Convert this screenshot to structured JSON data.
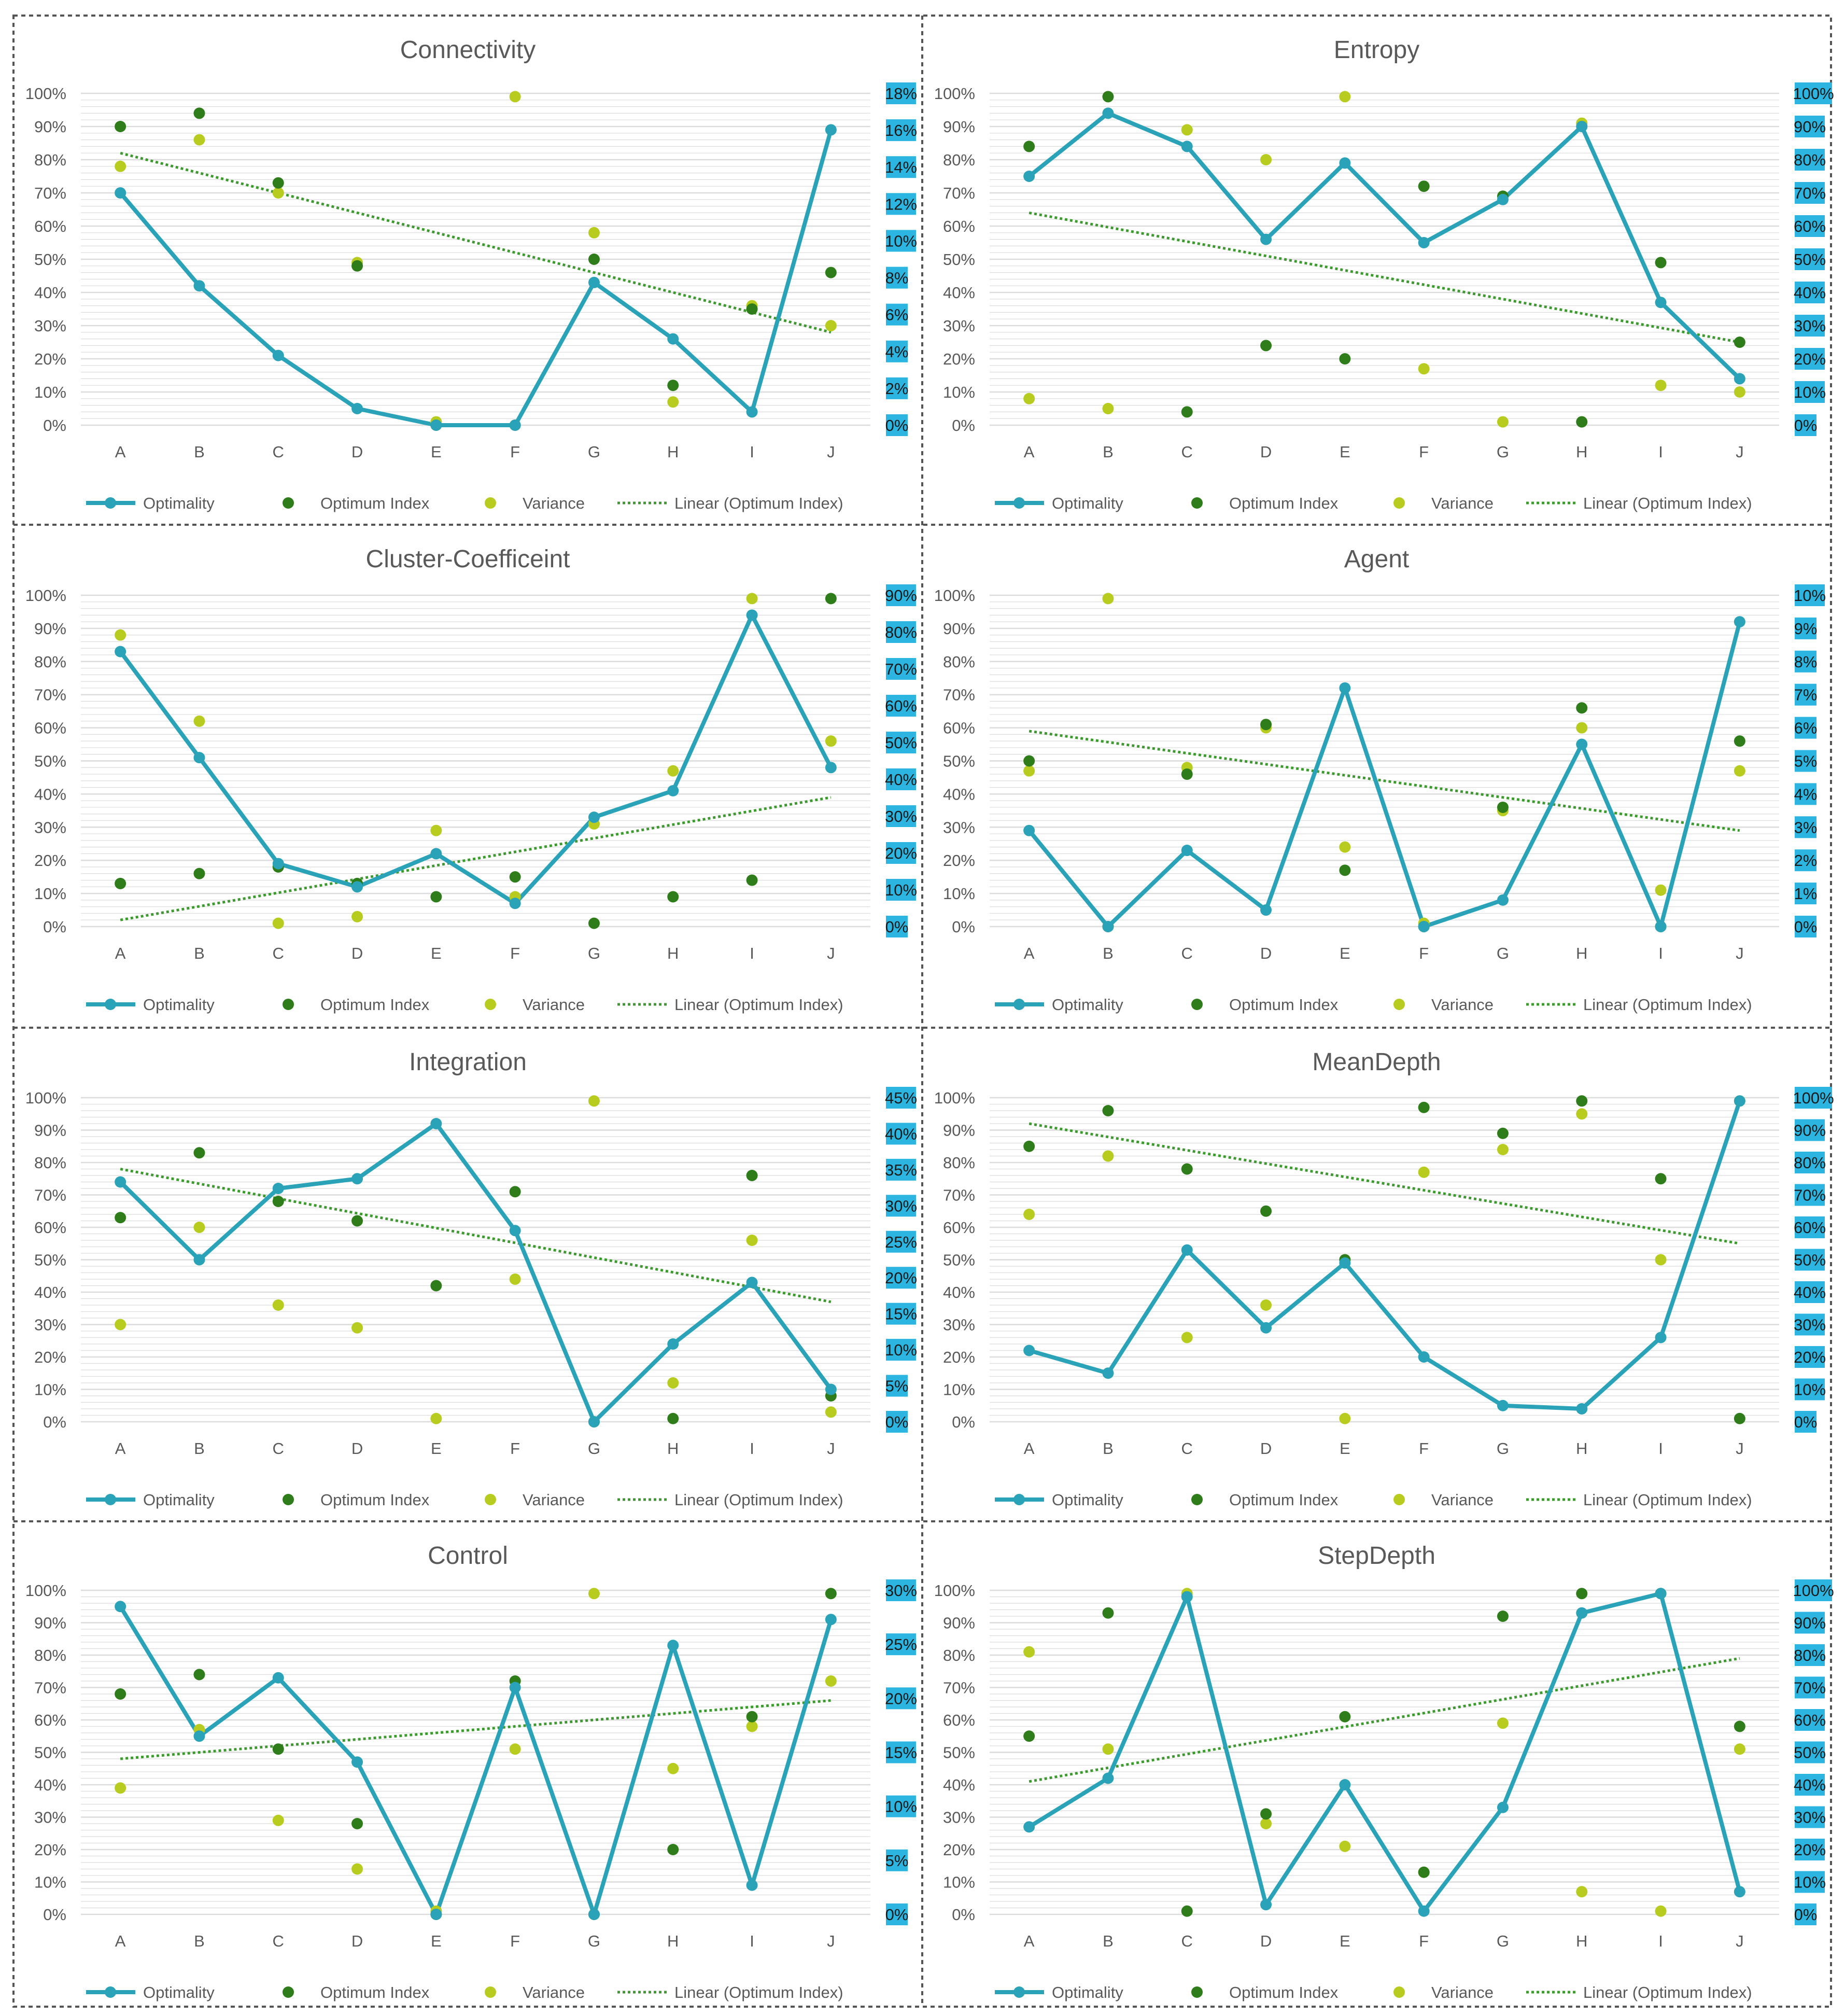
{
  "legend": {
    "optimality": "Optimality",
    "optimum_index": "Optimum Index",
    "variance": "Variance",
    "linear": "Linear (Optimum Index)"
  },
  "colors": {
    "optimality": "#2aa3b8",
    "optimum_index": "#2f7d1a",
    "variance": "#b7cc1f",
    "trend": "#3d9a2f",
    "right_axis_bg": "#2bb5e0",
    "gridline": "#dcdcdc",
    "frame": "#555555",
    "text": "#595959"
  },
  "left_axis_labels": [
    "0%",
    "10%",
    "20%",
    "30%",
    "40%",
    "50%",
    "60%",
    "70%",
    "80%",
    "90%",
    "100%"
  ],
  "chart_data": [
    {
      "type": "line+scatter",
      "title": "Connectivity",
      "categories": [
        "A",
        "B",
        "C",
        "D",
        "E",
        "F",
        "G",
        "H",
        "I",
        "J"
      ],
      "ylim": [
        0,
        100
      ],
      "right_axis_labels": [
        "0%",
        "2%",
        "4%",
        "6%",
        "8%",
        "10%",
        "12%",
        "14%",
        "16%",
        "18%"
      ],
      "series": [
        {
          "name": "Optimality",
          "values": [
            70,
            42,
            21,
            5,
            0,
            0,
            43,
            26,
            4,
            89
          ]
        },
        {
          "name": "Optimum Index",
          "values": [
            90,
            94,
            73,
            48,
            0,
            0,
            50,
            12,
            35,
            46
          ]
        },
        {
          "name": "Variance",
          "values": [
            78,
            86,
            70,
            49,
            1,
            99,
            58,
            7,
            36,
            30
          ]
        }
      ],
      "trend": {
        "name": "Linear (Optimum Index)",
        "start": 82,
        "end": 28
      }
    },
    {
      "type": "line+scatter",
      "title": "Entropy",
      "categories": [
        "A",
        "B",
        "C",
        "D",
        "E",
        "F",
        "G",
        "H",
        "I",
        "J"
      ],
      "ylim": [
        0,
        100
      ],
      "right_axis_labels": [
        "0%",
        "10%",
        "20%",
        "30%",
        "40%",
        "50%",
        "60%",
        "70%",
        "80%",
        "90%",
        "100%"
      ],
      "series": [
        {
          "name": "Optimality",
          "values": [
            75,
            94,
            84,
            56,
            79,
            55,
            68,
            90,
            37,
            14
          ]
        },
        {
          "name": "Optimum Index",
          "values": [
            84,
            99,
            4,
            24,
            20,
            72,
            69,
            1,
            49,
            25
          ]
        },
        {
          "name": "Variance",
          "values": [
            8,
            5,
            89,
            80,
            99,
            17,
            1,
            91,
            12,
            10
          ]
        }
      ],
      "trend": {
        "name": "Linear (Optimum Index)",
        "start": 64,
        "end": 25
      }
    },
    {
      "type": "line+scatter",
      "title": "Cluster-Coefficeint",
      "categories": [
        "A",
        "B",
        "C",
        "D",
        "E",
        "F",
        "G",
        "H",
        "I",
        "J"
      ],
      "ylim": [
        0,
        100
      ],
      "right_axis_labels": [
        "0%",
        "10%",
        "20%",
        "30%",
        "40%",
        "50%",
        "60%",
        "70%",
        "80%",
        "90%"
      ],
      "series": [
        {
          "name": "Optimality",
          "values": [
            83,
            51,
            19,
            12,
            22,
            7,
            33,
            41,
            94,
            48
          ]
        },
        {
          "name": "Optimum Index",
          "values": [
            13,
            16,
            18,
            13,
            9,
            15,
            1,
            9,
            14,
            99
          ]
        },
        {
          "name": "Variance",
          "values": [
            88,
            62,
            1,
            3,
            29,
            9,
            31,
            47,
            99,
            56
          ]
        }
      ],
      "trend": {
        "name": "Linear (Optimum Index)",
        "start": 2,
        "end": 39
      }
    },
    {
      "type": "line+scatter",
      "title": "Agent",
      "categories": [
        "A",
        "B",
        "C",
        "D",
        "E",
        "F",
        "G",
        "H",
        "I",
        "J"
      ],
      "ylim": [
        0,
        100
      ],
      "right_axis_labels": [
        "0%",
        "1%",
        "2%",
        "3%",
        "4%",
        "5%",
        "6%",
        "7%",
        "8%",
        "9%",
        "10%"
      ],
      "series": [
        {
          "name": "Optimality",
          "values": [
            29,
            0,
            23,
            5,
            72,
            0,
            8,
            55,
            0,
            92
          ]
        },
        {
          "name": "Optimum Index",
          "values": [
            50,
            0,
            46,
            61,
            17,
            0,
            36,
            66,
            0,
            56
          ]
        },
        {
          "name": "Variance",
          "values": [
            47,
            99,
            48,
            60,
            24,
            1,
            35,
            60,
            11,
            47
          ]
        }
      ],
      "trend": {
        "name": "Linear (Optimum Index)",
        "start": 59,
        "end": 29
      }
    },
    {
      "type": "line+scatter",
      "title": "Integration",
      "categories": [
        "A",
        "B",
        "C",
        "D",
        "E",
        "F",
        "G",
        "H",
        "I",
        "J"
      ],
      "ylim": [
        0,
        100
      ],
      "right_axis_labels": [
        "0%",
        "5%",
        "10%",
        "15%",
        "20%",
        "25%",
        "30%",
        "35%",
        "40%",
        "45%"
      ],
      "series": [
        {
          "name": "Optimality",
          "values": [
            74,
            50,
            72,
            75,
            92,
            59,
            0,
            24,
            43,
            10
          ]
        },
        {
          "name": "Optimum Index",
          "values": [
            63,
            83,
            68,
            62,
            42,
            71,
            0,
            1,
            76,
            8
          ]
        },
        {
          "name": "Variance",
          "values": [
            30,
            60,
            36,
            29,
            1,
            44,
            99,
            12,
            56,
            3
          ]
        }
      ],
      "trend": {
        "name": "Linear (Optimum Index)",
        "start": 78,
        "end": 37
      }
    },
    {
      "type": "line+scatter",
      "title": "MeanDepth",
      "categories": [
        "A",
        "B",
        "C",
        "D",
        "E",
        "F",
        "G",
        "H",
        "I",
        "J"
      ],
      "ylim": [
        0,
        100
      ],
      "right_axis_labels": [
        "0%",
        "10%",
        "20%",
        "30%",
        "40%",
        "50%",
        "60%",
        "70%",
        "80%",
        "90%",
        "100%"
      ],
      "series": [
        {
          "name": "Optimality",
          "values": [
            22,
            15,
            53,
            29,
            49,
            20,
            5,
            4,
            26,
            99
          ]
        },
        {
          "name": "Optimum Index",
          "values": [
            85,
            96,
            78,
            65,
            50,
            97,
            89,
            99,
            75,
            1
          ]
        },
        {
          "name": "Variance",
          "values": [
            64,
            82,
            26,
            36,
            1,
            77,
            84,
            95,
            50,
            99
          ]
        }
      ],
      "trend": {
        "name": "Linear (Optimum Index)",
        "start": 92,
        "end": 55
      }
    },
    {
      "type": "line+scatter",
      "title": "Control",
      "categories": [
        "A",
        "B",
        "C",
        "D",
        "E",
        "F",
        "G",
        "H",
        "I",
        "J"
      ],
      "ylim": [
        0,
        100
      ],
      "right_axis_labels": [
        "0%",
        "5%",
        "10%",
        "15%",
        "20%",
        "25%",
        "30%"
      ],
      "series": [
        {
          "name": "Optimality",
          "values": [
            95,
            55,
            73,
            47,
            0,
            70,
            0,
            83,
            9,
            91
          ]
        },
        {
          "name": "Optimum Index",
          "values": [
            68,
            74,
            51,
            28,
            0,
            72,
            0,
            20,
            61,
            99
          ]
        },
        {
          "name": "Variance",
          "values": [
            39,
            57,
            29,
            14,
            1,
            51,
            99,
            45,
            58,
            72
          ]
        }
      ],
      "trend": {
        "name": "Linear (Optimum Index)",
        "start": 48,
        "end": 66
      }
    },
    {
      "type": "line+scatter",
      "title": "StepDepth",
      "categories": [
        "A",
        "B",
        "C",
        "D",
        "E",
        "F",
        "G",
        "H",
        "I",
        "J"
      ],
      "ylim": [
        0,
        100
      ],
      "right_axis_labels": [
        "0%",
        "10%",
        "20%",
        "30%",
        "40%",
        "50%",
        "60%",
        "70%",
        "80%",
        "90%",
        "100%"
      ],
      "series": [
        {
          "name": "Optimality",
          "values": [
            27,
            42,
            98,
            3,
            40,
            1,
            33,
            93,
            99,
            7
          ]
        },
        {
          "name": "Optimum Index",
          "values": [
            55,
            93,
            1,
            31,
            61,
            13,
            92,
            99,
            99,
            58
          ]
        },
        {
          "name": "Variance",
          "values": [
            81,
            51,
            99,
            28,
            21,
            13,
            59,
            7,
            1,
            51
          ]
        }
      ],
      "trend": {
        "name": "Linear (Optimum Index)",
        "start": 41,
        "end": 79
      }
    }
  ]
}
